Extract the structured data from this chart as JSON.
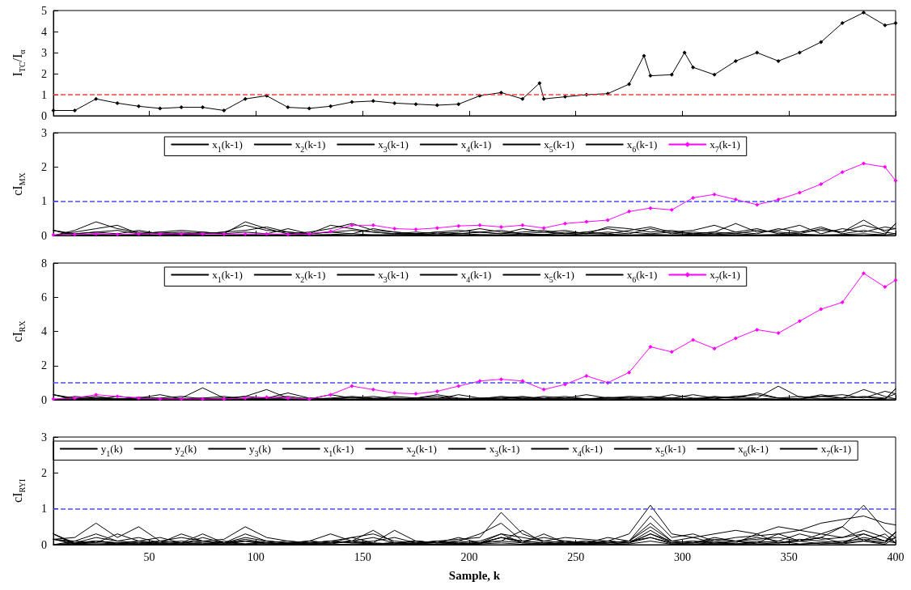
{
  "chart_data": [
    {
      "type": "line",
      "ylabel": "I$_{TC}$/I$_{α}$",
      "xlim": [
        5,
        400
      ],
      "xticks": [
        50,
        100,
        150,
        200,
        250,
        300,
        350,
        400
      ],
      "ylim": [
        0,
        5
      ],
      "yticks": [
        0,
        1,
        2,
        3,
        4,
        5
      ],
      "tick_labels": "y",
      "grid": false,
      "legend": false,
      "marker": "diamond",
      "line_style": "solid",
      "x": [
        5,
        15,
        25,
        35,
        45,
        55,
        65,
        75,
        85,
        95,
        105,
        115,
        125,
        135,
        145,
        155,
        165,
        175,
        185,
        195,
        205,
        215,
        225,
        233,
        235,
        245,
        255,
        265,
        275,
        282,
        285,
        295,
        301,
        305,
        315,
        325,
        335,
        345,
        355,
        365,
        375,
        385,
        395,
        400
      ],
      "series": [
        {
          "color": "#000000",
          "values": [
            0.25,
            0.25,
            0.8,
            0.6,
            0.45,
            0.35,
            0.4,
            0.4,
            0.25,
            0.8,
            0.95,
            0.4,
            0.35,
            0.45,
            0.65,
            0.7,
            0.6,
            0.55,
            0.5,
            0.55,
            0.95,
            1.1,
            0.8,
            1.55,
            0.8,
            0.9,
            1.0,
            1.05,
            1.5,
            2.85,
            1.9,
            1.95,
            3.0,
            2.3,
            1.95,
            2.6,
            3.0,
            2.6,
            3.0,
            3.5,
            4.4,
            4.9,
            4.3,
            4.4
          ]
        }
      ],
      "ref_lines": [
        {
          "axis": "y",
          "value": 1,
          "color": "#ff4040",
          "line_style": "dashed"
        }
      ]
    },
    {
      "type": "line",
      "ylabel": "cI$_{MX}$",
      "xlim": [
        5,
        400
      ],
      "xticks": [
        50,
        100,
        150,
        200,
        250,
        300,
        350,
        400
      ],
      "ylim": [
        0,
        3
      ],
      "yticks": [
        0,
        1,
        2,
        3
      ],
      "tick_labels": "y",
      "grid": false,
      "legend": "top",
      "marker": "none",
      "line_style": "solid",
      "x": [
        5,
        15,
        25,
        35,
        45,
        55,
        65,
        75,
        85,
        95,
        105,
        115,
        125,
        135,
        145,
        155,
        165,
        175,
        185,
        195,
        205,
        215,
        225,
        235,
        245,
        255,
        265,
        275,
        285,
        295,
        305,
        315,
        325,
        335,
        345,
        355,
        365,
        375,
        385,
        395,
        400
      ],
      "series": [
        {
          "name": "x$_{1}$(k-1)",
          "color": "#000000",
          "values": [
            0,
            0.15,
            0.4,
            0.2,
            0.1,
            0.05,
            0.1,
            0.05,
            0.1,
            0.3,
            0.15,
            0.1,
            0.05,
            0.3,
            0.2,
            0.1,
            0.05,
            0.1,
            0.05,
            0.1,
            0.2,
            0.1,
            0.05,
            0.1,
            0.05,
            0.1,
            0.2,
            0.1,
            0.05,
            0.1,
            0.15,
            0.3,
            0.1,
            0.05,
            0.2,
            0.1,
            0.15,
            0.1,
            0.45,
            0.1,
            0.05
          ]
        },
        {
          "name": "x$_{2}$(k-1)",
          "color": "#000000",
          "values": [
            0,
            0.1,
            0.2,
            0.3,
            0.05,
            0.1,
            0.15,
            0.1,
            0.05,
            0.4,
            0.2,
            0.05,
            0.1,
            0.2,
            0.35,
            0.15,
            0.1,
            0.05,
            0.1,
            0.15,
            0.1,
            0.05,
            0.2,
            0.1,
            0.15,
            0.05,
            0.25,
            0.2,
            0.1,
            0.15,
            0.05,
            0.1,
            0.35,
            0.1,
            0.15,
            0.3,
            0.05,
            0.2,
            0.1,
            0.25,
            0.2
          ]
        },
        {
          "name": "x$_{3}$(k-1)",
          "color": "#000000",
          "values": [
            0,
            0.05,
            0.1,
            0.05,
            0.15,
            0.05,
            0.02,
            0.1,
            0.05,
            0.1,
            0.05,
            0.2,
            0.05,
            0.1,
            0.05,
            0.2,
            0.1,
            0.05,
            0.02,
            0.05,
            0.1,
            0.15,
            0.05,
            0.02,
            0.1,
            0.05,
            0.1,
            0.05,
            0.2,
            0.05,
            0.1,
            0.05,
            0.1,
            0.2,
            0.05,
            0.1,
            0.25,
            0.05,
            0.15,
            0.05,
            0.35
          ]
        },
        {
          "name": "x$_{4}$(k-1)",
          "color": "#000000",
          "values": [
            0.15,
            0.02,
            0.05,
            0.02,
            0.03,
            0.02,
            0.05,
            0.02,
            0.01,
            0.03,
            0.02,
            0.05,
            0.02,
            0.03,
            0.05,
            0.02,
            0.03,
            0.04,
            0.02,
            0.05,
            0.03,
            0.02,
            0.04,
            0.03,
            0.02,
            0.05,
            0.04,
            0.02,
            0.03,
            0.02,
            0.04,
            0.03,
            0.05,
            0.02,
            0.03,
            0.04,
            0.02,
            0.03,
            0.05,
            0.02,
            0.05
          ]
        },
        {
          "name": "x$_{5}$(k-1)",
          "color": "#000000",
          "values": [
            0.15,
            0.05,
            0.1,
            0.15,
            0.05,
            0.1,
            0.05,
            0.05,
            0.1,
            0.15,
            0.25,
            0.1,
            0.05,
            0.1,
            0.15,
            0.1,
            0.05,
            0.05,
            0.1,
            0.05,
            0.1,
            0.05,
            0.1,
            0.15,
            0.05,
            0.1,
            0.05,
            0.15,
            0.25,
            0.1,
            0.05,
            0.1,
            0.05,
            0.15,
            0.1,
            0.05,
            0.2,
            0.1,
            0.3,
            0.15,
            0.2
          ]
        },
        {
          "name": "x$_{6}$(k-1)",
          "color": "#000000",
          "values": [
            0.15,
            0,
            0.01,
            0,
            0.02,
            0,
            0.01,
            0,
            0,
            0.01,
            0,
            0.02,
            0,
            0.01,
            0,
            0.02,
            0,
            0.01,
            0,
            0.02,
            0,
            0.01,
            0,
            0.02,
            0.01,
            0,
            0.01,
            0,
            0.02,
            0,
            0.01,
            0,
            0.02,
            0,
            0.01,
            0.02,
            0,
            0.01,
            0,
            0.02,
            0.35
          ]
        },
        {
          "name": "x$_{7}$(k-1)",
          "color": "#ff00ff",
          "marker": "diamond",
          "values": [
            0.02,
            0.03,
            0.05,
            0.03,
            0.05,
            0.05,
            0.05,
            0.05,
            0.04,
            0.04,
            0.05,
            0.03,
            0.05,
            0.12,
            0.3,
            0.3,
            0.2,
            0.18,
            0.22,
            0.28,
            0.3,
            0.25,
            0.3,
            0.22,
            0.35,
            0.4,
            0.45,
            0.7,
            0.8,
            0.75,
            1.1,
            1.2,
            1.05,
            0.9,
            1.05,
            1.25,
            1.5,
            1.85,
            2.1,
            2.0,
            1.6
          ]
        }
      ],
      "ref_lines": [
        {
          "axis": "y",
          "value": 1,
          "color": "#4a4aff",
          "line_style": "dashed"
        }
      ]
    },
    {
      "type": "line",
      "ylabel": "cI$_{RX}$",
      "xlim": [
        5,
        400
      ],
      "xticks": [
        50,
        100,
        150,
        200,
        250,
        300,
        350,
        400
      ],
      "ylim": [
        0,
        8
      ],
      "yticks": [
        0,
        2,
        4,
        6,
        8
      ],
      "tick_labels": "y",
      "grid": false,
      "legend": "top",
      "marker": "none",
      "line_style": "solid",
      "x": [
        5,
        15,
        25,
        35,
        45,
        55,
        65,
        75,
        85,
        95,
        105,
        115,
        125,
        135,
        145,
        155,
        165,
        175,
        185,
        195,
        205,
        215,
        225,
        235,
        245,
        255,
        265,
        275,
        285,
        295,
        305,
        315,
        325,
        335,
        345,
        355,
        365,
        375,
        385,
        395,
        400
      ],
      "series": [
        {
          "name": "x$_{1}$(k-1)",
          "color": "#000000",
          "values": [
            0,
            0.1,
            0.05,
            0.2,
            0.1,
            0.05,
            0.1,
            0.7,
            0.1,
            0.05,
            0.1,
            0.2,
            0.05,
            0.1,
            0.2,
            0.1,
            0.05,
            0.1,
            0.2,
            0.05,
            0.1,
            0.15,
            0.05,
            0.2,
            0.1,
            0.05,
            0.1,
            0.2,
            0.15,
            0.1,
            0.3,
            0.1,
            0.2,
            0.1,
            0.8,
            0.15,
            0.2,
            0.1,
            0.6,
            0.2,
            0.05
          ]
        },
        {
          "name": "x$_{2}$(k-1)",
          "color": "#000000",
          "values": [
            0,
            0.2,
            0.1,
            0.05,
            0.15,
            0.1,
            0.2,
            0.05,
            0.1,
            0.2,
            0.6,
            0.1,
            0.05,
            0.3,
            0.1,
            0.05,
            0.2,
            0.1,
            0.05,
            0.3,
            0.1,
            0.05,
            0.15,
            0.1,
            0.2,
            0.05,
            0.1,
            0.15,
            0.05,
            0.3,
            0.1,
            0.05,
            0.2,
            0.3,
            0.1,
            0.05,
            0.2,
            0.3,
            0.1,
            0.5,
            0.35
          ]
        },
        {
          "name": "x$_{3}$(k-1)",
          "color": "#000000",
          "values": [
            0,
            0.05,
            0.1,
            0.05,
            0.1,
            0.05,
            0.05,
            0.1,
            0.2,
            0.05,
            0.1,
            0.05,
            0.1,
            0.05,
            0.15,
            0.05,
            0.1,
            0.05,
            0.1,
            0.05,
            0.05,
            0.1,
            0.2,
            0.05,
            0.1,
            0.05,
            0.15,
            0.1,
            0.05,
            0.1,
            0.05,
            0.15,
            0.1,
            0.05,
            0.1,
            0.2,
            0.05,
            0.1,
            0.15,
            0.05,
            0.65
          ]
        },
        {
          "name": "x$_{4}$(k-1)",
          "color": "#000000",
          "values": [
            0.3,
            0.02,
            0.05,
            0.02,
            0.04,
            0.02,
            0.03,
            0.05,
            0.02,
            0.03,
            0.05,
            0.02,
            0.04,
            0.03,
            0.02,
            0.05,
            0.03,
            0.02,
            0.04,
            0.05,
            0.02,
            0.03,
            0.05,
            0.02,
            0.04,
            0.03,
            0.05,
            0.02,
            0.03,
            0.05,
            0.04,
            0.02,
            0.05,
            0.03,
            0.02,
            0.04,
            0.05,
            0.03,
            0.02,
            0.04,
            0.05
          ]
        },
        {
          "name": "x$_{5}$(k-1)",
          "color": "#000000",
          "values": [
            0.3,
            0.1,
            0.2,
            0.05,
            0.1,
            0.3,
            0.05,
            0.1,
            0.05,
            0.2,
            0.1,
            0.4,
            0.1,
            0.05,
            0.1,
            0.2,
            0.05,
            0.1,
            0.3,
            0.1,
            0.05,
            0.2,
            0.1,
            0.05,
            0.1,
            0.3,
            0.1,
            0.05,
            0.2,
            0.1,
            0.05,
            0.2,
            0.1,
            0.4,
            0.1,
            0.05,
            0.3,
            0.1,
            0.2,
            0.1,
            0.35
          ]
        },
        {
          "name": "x$_{6}$(k-1)",
          "color": "#000000",
          "values": [
            0.3,
            0.01,
            0,
            0.02,
            0,
            0.01,
            0.02,
            0,
            0.01,
            0,
            0.02,
            0.01,
            0,
            0.02,
            0,
            0.01,
            0,
            0.02,
            0.01,
            0,
            0.02,
            0,
            0.01,
            0.02,
            0,
            0.01,
            0,
            0.02,
            0,
            0.01,
            0.02,
            0,
            0.01,
            0,
            0.02,
            0.01,
            0,
            0.02,
            0,
            0.01,
            0.65
          ]
        },
        {
          "name": "x$_{7}$(k-1)",
          "color": "#ff00ff",
          "marker": "diamond",
          "values": [
            0.05,
            0.1,
            0.3,
            0.2,
            0.1,
            0.05,
            0.05,
            0.05,
            0.05,
            0.1,
            0.15,
            0.1,
            0.05,
            0.3,
            0.8,
            0.6,
            0.4,
            0.35,
            0.5,
            0.8,
            1.1,
            1.2,
            1.1,
            0.6,
            0.9,
            1.4,
            1.0,
            1.6,
            3.1,
            2.8,
            3.5,
            3.0,
            3.6,
            4.1,
            3.9,
            4.6,
            5.3,
            5.7,
            7.4,
            6.6,
            7.0
          ]
        }
      ],
      "ref_lines": [
        {
          "axis": "y",
          "value": 1,
          "color": "#4a4aff",
          "line_style": "dashed"
        }
      ]
    },
    {
      "type": "line",
      "ylabel": "cI$_{RYI}$",
      "xlabel": "Sample, k",
      "xlim": [
        5,
        400
      ],
      "xticks": [
        50,
        100,
        150,
        200,
        250,
        300,
        350,
        400
      ],
      "ylim": [
        0,
        3
      ],
      "yticks": [
        0,
        1,
        2,
        3
      ],
      "grid": false,
      "legend": "top",
      "marker": "none",
      "line_style": "solid",
      "x": [
        5,
        15,
        25,
        35,
        45,
        55,
        65,
        75,
        85,
        95,
        105,
        115,
        125,
        135,
        145,
        155,
        165,
        175,
        185,
        195,
        205,
        215,
        225,
        235,
        245,
        255,
        265,
        275,
        285,
        295,
        305,
        315,
        325,
        335,
        345,
        355,
        365,
        375,
        385,
        395,
        400
      ],
      "series": [
        {
          "name": "y$_{1}$(k)",
          "color": "#000000",
          "values": [
            0.15,
            0.2,
            0.6,
            0.2,
            0.5,
            0.1,
            0.2,
            0.1,
            0.15,
            0.5,
            0.2,
            0.1,
            0.05,
            0.1,
            0.2,
            0.3,
            0.1,
            0.05,
            0.1,
            0.15,
            0.2,
            0.9,
            0.3,
            0.1,
            0.2,
            0.15,
            0.1,
            0.3,
            1.1,
            0.3,
            0.2,
            0.3,
            0.4,
            0.3,
            0.5,
            0.4,
            0.6,
            0.7,
            0.8,
            0.6,
            0.55
          ]
        },
        {
          "name": "y$_{2}$(k)",
          "color": "#000000",
          "values": [
            0,
            0.1,
            0.3,
            0.1,
            0.2,
            0.05,
            0.3,
            0.1,
            0.05,
            0.2,
            0.1,
            0.05,
            0.1,
            0.3,
            0.1,
            0.05,
            0.4,
            0.1,
            0.05,
            0.1,
            0.3,
            0.6,
            0.1,
            0.2,
            0.1,
            0.05,
            0.2,
            0.1,
            0.8,
            0.2,
            0.3,
            0.1,
            0.2,
            0.25,
            0.3,
            0.4,
            0.3,
            0.5,
            1.1,
            0.4,
            0.2
          ]
        },
        {
          "name": "y$_{3}$(k)",
          "color": "#000000",
          "values": [
            0.3,
            0.05,
            0.1,
            0.05,
            0.1,
            0.2,
            0.05,
            0.1,
            0.05,
            0.15,
            0.05,
            0.1,
            0.05,
            0.1,
            0.05,
            0.1,
            0.2,
            0.05,
            0.1,
            0.05,
            0.1,
            0.3,
            0.2,
            0.1,
            0.05,
            0.1,
            0.05,
            0.1,
            0.5,
            0.1,
            0.2,
            0.05,
            0.1,
            0.15,
            0.2,
            0.1,
            0.3,
            0.2,
            0.4,
            0.2,
            0.05
          ]
        },
        {
          "name": "x$_{1}$(k-1)",
          "color": "#000000",
          "values": [
            0,
            0.05,
            0.1,
            0.05,
            0.02,
            0.05,
            0.1,
            0.05,
            0.02,
            0.1,
            0.05,
            0.02,
            0.05,
            0.1,
            0.05,
            0.02,
            0.05,
            0.1,
            0.05,
            0.02,
            0.05,
            0.2,
            0.1,
            0.05,
            0.02,
            0.05,
            0.1,
            0.05,
            0.3,
            0.05,
            0.1,
            0.05,
            0.02,
            0.1,
            0.05,
            0.15,
            0.1,
            0.05,
            0.2,
            0.1,
            0.05
          ]
        },
        {
          "name": "x$_{2}$(k-1)",
          "color": "#000000",
          "values": [
            0.15,
            0.1,
            0.05,
            0.3,
            0.1,
            0.05,
            0.02,
            0.2,
            0.05,
            0.1,
            0.05,
            0.02,
            0.1,
            0.05,
            0.2,
            0.05,
            0.02,
            0.1,
            0.05,
            0.2,
            0.05,
            0.1,
            0.4,
            0.05,
            0.1,
            0.02,
            0.05,
            0.1,
            0.6,
            0.1,
            0.05,
            0.2,
            0.1,
            0.05,
            0.3,
            0.1,
            0.2,
            0.5,
            0.1,
            0.3,
            0.05
          ]
        },
        {
          "name": "x$_{3}$(k-1)",
          "color": "#000000",
          "values": [
            0,
            0.02,
            0.05,
            0.02,
            0.1,
            0.02,
            0.05,
            0.02,
            0.1,
            0.02,
            0.05,
            0.02,
            0.05,
            0.02,
            0.1,
            0.02,
            0.05,
            0.02,
            0.1,
            0.02,
            0.05,
            0.1,
            0.05,
            0.02,
            0.05,
            0.1,
            0.02,
            0.05,
            0.2,
            0.02,
            0.05,
            0.1,
            0.02,
            0.05,
            0.1,
            0.02,
            0.05,
            0.1,
            0.15,
            0.05,
            0.35
          ]
        },
        {
          "name": "x$_{4}$(k-1)",
          "color": "#000000",
          "values": [
            0.15,
            0.02,
            0.1,
            0.05,
            0.02,
            0.1,
            0.05,
            0.3,
            0.05,
            0.02,
            0.1,
            0.05,
            0.02,
            0.05,
            0.1,
            0.4,
            0.05,
            0.02,
            0.1,
            0.05,
            0.02,
            0.2,
            0.05,
            0.3,
            0.05,
            0.02,
            0.1,
            0.05,
            0.4,
            0.05,
            0.1,
            0.02,
            0.05,
            0.3,
            0.05,
            0.1,
            0.2,
            0.05,
            0.3,
            0.1,
            0.2
          ]
        },
        {
          "name": "x$_{5}$(k-1)",
          "color": "#000000",
          "values": [
            0.3,
            0.01,
            0.02,
            0.01,
            0,
            0.02,
            0.01,
            0,
            0.02,
            0.01,
            0,
            0.02,
            0.01,
            0,
            0.02,
            0.01,
            0,
            0.02,
            0.01,
            0,
            0.02,
            0.05,
            0.01,
            0,
            0.02,
            0.01,
            0,
            0.02,
            0.1,
            0.01,
            0,
            0.02,
            0.01,
            0,
            0.02,
            0.01,
            0.05,
            0.02,
            0.1,
            0.01,
            0.2
          ]
        },
        {
          "name": "x$_{6}$(k-1)",
          "color": "#000000",
          "values": [
            0.15,
            0.05,
            0.2,
            0.1,
            0.05,
            0.1,
            0.05,
            0.1,
            0.05,
            0.3,
            0.1,
            0.05,
            0.1,
            0.05,
            0.1,
            0.2,
            0.05,
            0.1,
            0.05,
            0.1,
            0.05,
            0.2,
            0.1,
            0.05,
            0.1,
            0.05,
            0.1,
            0.05,
            0.3,
            0.1,
            0.05,
            0.15,
            0.1,
            0.2,
            0.1,
            0.3,
            0.15,
            0.2,
            0.3,
            0.1,
            0.35
          ]
        },
        {
          "name": "x$_{7}$(k-1)",
          "color": "#000000",
          "values": [
            0.3,
            0.02,
            0.1,
            0.02,
            0.05,
            0.02,
            0.05,
            0.02,
            0.05,
            0.1,
            0.02,
            0.05,
            0.02,
            0.05,
            0.1,
            0.02,
            0.05,
            0.02,
            0.05,
            0.02,
            0.05,
            0.3,
            0.05,
            0.02,
            0.05,
            0.02,
            0.05,
            0.1,
            0.2,
            0.05,
            0.02,
            0.05,
            0.1,
            0.02,
            0.05,
            0.1,
            0.02,
            0.05,
            0.1,
            0.05,
            0.35
          ]
        }
      ],
      "ref_lines": [
        {
          "axis": "y",
          "value": 1,
          "color": "#4a4aff",
          "line_style": "dashed"
        }
      ]
    }
  ]
}
